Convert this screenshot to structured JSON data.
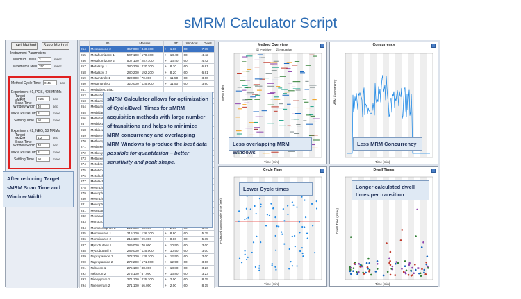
{
  "title": "sMRM Calculator Script",
  "controls": {
    "load_method": "Load Method",
    "save_method": "Save Method",
    "instrument_params": "Instrument Parameters",
    "min_dwell_label": "Minimum Dwell",
    "min_dwell_value": "3",
    "min_dwell_unit": "msec",
    "max_dwell_label": "Maximum Dwell",
    "max_dwell_value": "250",
    "max_dwell_unit": "msec",
    "cycle_label": "Method Cycle Time",
    "cycle_value": "0.45",
    "cycle_unit": "sec",
    "exp1_title": "Experiment #1, POS, 428 MRMs",
    "exp2_title": "Experiment #2, NEG, 58 MRMs",
    "target_label": "Target sMRM Scan Time",
    "window_label": "Window Width",
    "pause_label": "MRM Pause Time",
    "settle_label": "Settling Time",
    "exp1": {
      "target": "0.25",
      "window": "40",
      "pause": "3",
      "settle": "50"
    },
    "exp2": {
      "target": "1.2",
      "window": "40",
      "pause": "3",
      "settle": "50"
    },
    "sec": "sec",
    "msec": "msec"
  },
  "grid": {
    "headers": [
      "",
      "ID",
      "Masses",
      "",
      "RT",
      "Window",
      "Dwell"
    ],
    "rows": [
      [
        "254",
        "Mesosmone 2",
        "357.000 / 340.100",
        "+",
        "1.80",
        "60",
        "7.75"
      ],
      [
        "255",
        "Metaflumizone 1",
        "507.100 / 178.100",
        "+",
        "13.40",
        "60",
        "4.42"
      ],
      [
        "256",
        "Metaflumizone 2",
        "507.100 / 287.100",
        "+",
        "13.40",
        "60",
        "4.42"
      ],
      [
        "257",
        "Metalaxyl 1",
        "280.200 / 220.200",
        "+",
        "8.20",
        "60",
        "6.81"
      ],
      [
        "258",
        "Metalaxyl 2",
        "280.200 / 192.200",
        "+",
        "8.20",
        "60",
        "6.81"
      ],
      [
        "259",
        "Metamitrole 1",
        "320.000 / 70.000",
        "+",
        "11.50",
        "60",
        "3.60"
      ],
      [
        "260",
        "Metamitrole 2",
        "320.000 / 125.000",
        "+",
        "11.50",
        "60",
        "3.60"
      ],
      [
        "261",
        "Methabenzthiaz",
        "",
        "",
        "",
        "",
        ""
      ],
      [
        "262",
        "Methabenzthiaz",
        "",
        "",
        "",
        "",
        ""
      ],
      [
        "263",
        "Methamidophos",
        "",
        "",
        "",
        "",
        ""
      ],
      [
        "264",
        "Methamidophos",
        "",
        "",
        "",
        "",
        ""
      ],
      [
        "265",
        "Methidathion 1",
        "",
        "",
        "",
        "",
        ""
      ],
      [
        "266",
        "Methidathion 2",
        "",
        "",
        "",
        "",
        ""
      ],
      [
        "267",
        "Methiocarb 1",
        "",
        "",
        "",
        "",
        ""
      ],
      [
        "268",
        "Methiocarb 2",
        "",
        "",
        "",
        "",
        ""
      ],
      [
        "269",
        "Methomyl 1",
        "",
        "",
        "",
        "",
        ""
      ],
      [
        "270",
        "Methomyl 2",
        "",
        "",
        "",
        "",
        ""
      ],
      [
        "271",
        "Methoxyfenozide",
        "",
        "",
        "",
        "",
        ""
      ],
      [
        "272",
        "Methoxyfenozide",
        "",
        "",
        "",
        "",
        ""
      ],
      [
        "273",
        "Methoxyfenozide",
        "",
        "",
        "",
        "",
        ""
      ],
      [
        "274",
        "Metobromuron",
        "",
        "",
        "",
        "",
        ""
      ],
      [
        "275",
        "Metobromuron",
        "",
        "",
        "",
        "",
        ""
      ],
      [
        "276",
        "Metolachlor 1",
        "",
        "",
        "",
        "",
        ""
      ],
      [
        "277",
        "Metolachlor 2",
        "",
        "",
        "",
        "",
        ""
      ],
      [
        "278",
        "Mevinphos E",
        "",
        "",
        "",
        "",
        ""
      ],
      [
        "279",
        "Mevinphos E",
        "",
        "",
        "",
        "",
        ""
      ],
      [
        "280",
        "Mevinphos Z",
        "",
        "",
        "",
        "",
        ""
      ],
      [
        "281",
        "Mevinphos Z",
        "",
        "",
        "",
        "",
        ""
      ],
      [
        "281",
        "Mexacarbate 1",
        "223.200 / 166.200",
        "+",
        "9.80",
        "60",
        "3.00"
      ],
      [
        "282",
        "Mexacarbate 2",
        "223.200 / 151.000",
        "+",
        "9.80",
        "60",
        "3.00"
      ],
      [
        "283",
        "Monocrotophos 1",
        "224.000 / 127.000",
        "+",
        "2.80",
        "60",
        "6.43"
      ],
      [
        "284",
        "Monocrotophos 2",
        "224.000 / 98.000",
        "+",
        "2.80",
        "60",
        "6.43"
      ],
      [
        "285",
        "Monolinuron 1",
        "215.100 / 126.100",
        "+",
        "8.80",
        "60",
        "5.35"
      ],
      [
        "286",
        "Monolinuron 2",
        "215.100 / 99.000",
        "+",
        "8.80",
        "60",
        "5.35"
      ],
      [
        "287",
        "Myclobutanil 1",
        "289.000 / 70.000",
        "+",
        "10.50",
        "60",
        "3.00"
      ],
      [
        "288",
        "Myclobutanil 2",
        "289.000 / 125.000",
        "+",
        "10.50",
        "60",
        "3.00"
      ],
      [
        "289",
        "Napropamide 1",
        "272.200 / 129.100",
        "+",
        "12.50",
        "60",
        "3.00"
      ],
      [
        "290",
        "Napropamide 2",
        "272.200 / 171.000",
        "+",
        "12.50",
        "60",
        "3.00"
      ],
      [
        "291",
        "Neburon 1",
        "275.100 / 88.000",
        "+",
        "13.80",
        "60",
        "3.23"
      ],
      [
        "292",
        "Neburon 2",
        "275.100 / 57.000",
        "+",
        "13.80",
        "60",
        "3.23"
      ],
      [
        "293",
        "Nitenpyram 1",
        "271.100 / 225.100",
        "+",
        "2.00",
        "60",
        "8.15"
      ],
      [
        "294",
        "Nitenpyram 2",
        "271.100 / 56.000",
        "+",
        "2.00",
        "60",
        "8.15"
      ]
    ]
  },
  "panes": {
    "overview": {
      "title": "Method Overview",
      "pos": "Positive",
      "neg": "Negative",
      "ylabel": "MRM Index",
      "xlabel": "Time (min)"
    },
    "concurrency": {
      "title": "Concurrency",
      "ylabel": "MRM Concurrency",
      "xlabel": "Time (min)"
    },
    "cycle": {
      "title": "Cycle Time",
      "ylabel": "Projected sMRM Cycle Time (sec)",
      "xlabel": "Time (min)"
    },
    "dwell": {
      "title": "Dwell Times",
      "ylabel": "Dwell Time (msec)",
      "xlabel": "Time (min)"
    }
  },
  "notes": {
    "main": "sMRM Calculator allows for optimization of Cycle/Dwell Times for sMRM acquisition methods with large number of transitions and helps to minimize MRM concurrency and overlapping MRM Windows to produce the",
    "main_em": "best data possible for quantitation – better sensitivity and peak shape.",
    "left": "After reducing Target sMRM Scan Time and Window Width",
    "overlap": "Less overlapping MRM Windows",
    "concurrency": "Less MRM Concurrency",
    "cycle": "Lower Cycle times",
    "dwell": "Longer calculated dwell times per transition"
  },
  "colors": {
    "title": "#2e6db4",
    "red_box": "#e02020",
    "selected_row": "#3b73c4"
  }
}
